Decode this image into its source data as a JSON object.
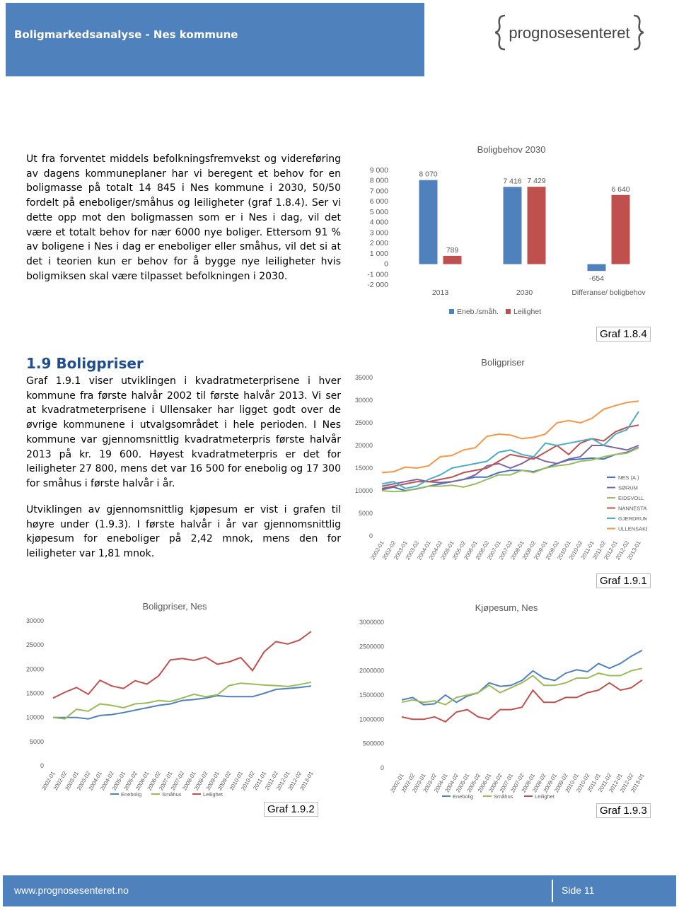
{
  "header": {
    "title": "Boligmarkedsanalyse - Nes kommune",
    "logo": "prognosesenteret"
  },
  "text": {
    "p1": "Ut fra forventet middels befolkningsfremvekst og videreføring av dagens kommuneplaner har vi beregent et behov for en boligmasse på totalt 14 845 i Nes kommune i 2030, 50/50 fordelt på eneboliger/småhus og leiligheter (graf 1.8.4). Ser vi dette opp mot den boligmassen som er i Nes i dag, vil det være et totalt behov for nær 6000 nye boliger. Ettersom 91 % av boligene i Nes i dag er eneboliger eller småhus, vil det si at det i teorien kun er behov for å bygge nye leiligheter hvis boligmiksen skal være tilpasset befolkningen i 2030.",
    "heading": "1.9 Boligpriser",
    "p2": "Graf 1.9.1 viser utviklingen i kvadratmeterprisene i hver kommune fra første halvår 2002 til første halvår 2013. Vi ser at kvadratmeterprisene i Ullensaker har ligget godt over de øvrige kommunene i utvalgsområdet i hele perioden. I Nes kommune var gjennomsnittlig kvadratmeterpris første halvår 2013 på kr. 19 600. Høyest kvadratmeterpris er det for leiligheter 27 800, mens det var 16 500 for enebolig og 17 300 for småhus i første halvår i år.",
    "p3": "Utviklingen av gjennomsnittlig kjøpesum er vist i grafen til høyre under (1.9.3). I første halvår i år var gjennomsnittlig kjøpesum for eneboliger på 2,42 mnok, mens den for leiligheter var 1,81 mnok."
  },
  "chart_data": [
    {
      "type": "bar",
      "title": "Boligbehov 2030",
      "caption": "Graf 1.8.4",
      "legend": "bottom",
      "grid": false,
      "categories": [
        "2013",
        "2030",
        "Differanse/ boligbehov"
      ],
      "series": [
        {
          "name": "Eneb./småh.",
          "color": "#4f81bd",
          "values": [
            8070,
            7416,
            -654
          ],
          "value_labels": [
            "8 070",
            "7 416",
            "-654"
          ]
        },
        {
          "name": "Leilighet",
          "color": "#c0504d",
          "values": [
            789,
            7429,
            6640
          ],
          "value_labels": [
            "789",
            "7 429",
            "6 640"
          ]
        }
      ],
      "ylim": [
        -2000,
        9000
      ],
      "yticks": [
        {
          "value": 9000,
          "label": "9 000"
        },
        {
          "value": 8000,
          "label": "8 000"
        },
        {
          "value": 7000,
          "label": "7 000"
        },
        {
          "value": 6000,
          "label": "6 000"
        },
        {
          "value": 5000,
          "label": "5 000"
        },
        {
          "value": 4000,
          "label": "4 000"
        },
        {
          "value": 3000,
          "label": "3 000"
        },
        {
          "value": 2000,
          "label": "2 000"
        },
        {
          "value": 1000,
          "label": "1 000"
        },
        0,
        {
          "value": -1000,
          "label": "-1 000"
        },
        {
          "value": -2000,
          "label": "-2 000"
        }
      ]
    },
    {
      "type": "line",
      "title": "Boligpriser",
      "caption": "Graf 1.9.1",
      "legend": "right",
      "grid": false,
      "categories": [
        "2002-01",
        "2002-02",
        "2003-01",
        "2003-02",
        "2004-01",
        "2004-02",
        "2005-01",
        "2005-02",
        "2006-01",
        "2006-02",
        "2007-01",
        "2007-02",
        "2008-01",
        "2008-02",
        "2009-01",
        "2009-02",
        "2010-01",
        "2010-02",
        "2011-01",
        "2011-02",
        "2012-01",
        "2012-02",
        "2013-01"
      ],
      "series": [
        {
          "name": "NES (A.)",
          "color": "#4472c4",
          "values": [
            10200,
            10800,
            10000,
            10400,
            11000,
            11500,
            12000,
            12500,
            13000,
            13000,
            14000,
            14500,
            14500,
            14200,
            15000,
            16000,
            16800,
            17000,
            17200,
            17000,
            18000,
            18500,
            19600
          ]
        },
        {
          "name": "SØRUM",
          "color": "#8064a2",
          "values": [
            11000,
            11500,
            12000,
            12500,
            12000,
            11800,
            12000,
            12500,
            13500,
            15500,
            16000,
            15000,
            16000,
            17500,
            16500,
            16000,
            17000,
            17500,
            20000,
            20000,
            19500,
            19000,
            20000
          ]
        },
        {
          "name": "EIDSVOLL",
          "color": "#9bbb59",
          "values": [
            10000,
            9800,
            9900,
            10500,
            11000,
            11000,
            11200,
            10800,
            11500,
            12500,
            13500,
            13500,
            14500,
            14000,
            15000,
            15500,
            15800,
            16500,
            16800,
            17500,
            18000,
            18300,
            19500
          ]
        },
        {
          "name": "NANNESTAD",
          "color": "#c0504d",
          "values": [
            10500,
            11000,
            11500,
            12000,
            12000,
            12500,
            13000,
            14000,
            14500,
            15000,
            16500,
            18000,
            17500,
            17000,
            18500,
            20000,
            18000,
            20500,
            21500,
            21000,
            23000,
            24000,
            24500
          ]
        },
        {
          "name": "GJERDRUM",
          "color": "#4bacc6",
          "values": [
            11500,
            12000,
            10500,
            11000,
            12500,
            13500,
            15000,
            15500,
            16000,
            16500,
            18500,
            19000,
            18000,
            17500,
            20500,
            20000,
            20500,
            21000,
            21500,
            20000,
            22500,
            23500,
            27500
          ]
        },
        {
          "name": "ULLENSAKER",
          "color": "#f79646",
          "values": [
            14000,
            14200,
            15200,
            15000,
            15500,
            17500,
            17800,
            19000,
            19500,
            22000,
            22500,
            22300,
            21500,
            21800,
            22500,
            25000,
            25500,
            25000,
            26000,
            28000,
            28800,
            29500,
            29800
          ]
        }
      ],
      "ylim": [
        0,
        35000
      ],
      "yticks": [
        35000,
        30000,
        25000,
        20000,
        15000,
        10000,
        5000,
        0
      ]
    },
    {
      "type": "line",
      "title": "Boligpriser, Nes",
      "caption": "Graf 1.9.2",
      "legend": "bottom",
      "grid": false,
      "categories": [
        "2002-01",
        "2002-02",
        "2003-01",
        "2003-02",
        "2004-01",
        "2004-02",
        "2005-01",
        "2005-02",
        "2006-01",
        "2006-02",
        "2007-01",
        "2007-02",
        "2008-01",
        "2008-02",
        "2009-01",
        "2009-02",
        "2010-01",
        "2010-02",
        "2011-01",
        "2011-02",
        "2012-01",
        "2012-02",
        "2013-01"
      ],
      "series": [
        {
          "name": "Enebolig",
          "color": "#4f81bd",
          "values": [
            10000,
            10000,
            10000,
            9700,
            10400,
            10600,
            11000,
            11500,
            12000,
            12500,
            12800,
            13500,
            13700,
            14000,
            14500,
            14300,
            14300,
            14300,
            15000,
            15800,
            16000,
            16200,
            16500
          ]
        },
        {
          "name": "Småhus",
          "color": "#9bbb59",
          "values": [
            10000,
            9700,
            11700,
            11300,
            12800,
            12500,
            12000,
            12800,
            13000,
            13500,
            13300,
            14000,
            14800,
            14300,
            14700,
            16600,
            17100,
            16900,
            16700,
            16600,
            16400,
            16800,
            17300
          ]
        },
        {
          "name": "Leilighet",
          "color": "#c0504d",
          "values": [
            14000,
            15200,
            16200,
            14800,
            17700,
            16500,
            16000,
            17600,
            16900,
            18600,
            21900,
            22200,
            21800,
            22500,
            21000,
            21500,
            22400,
            19700,
            23600,
            25700,
            25200,
            26000,
            27800
          ]
        }
      ],
      "ylim": [
        0,
        30000
      ],
      "yticks": [
        30000,
        25000,
        20000,
        15000,
        10000,
        5000,
        0
      ]
    },
    {
      "type": "line",
      "title": "Kjøpesum, Nes",
      "caption": "Graf 1.9.3",
      "legend": "bottom",
      "grid": false,
      "categories": [
        "2002-01",
        "2002-02",
        "2003-01",
        "2003-02",
        "2004-01",
        "2004-02",
        "2005-01",
        "2005-02",
        "2006-01",
        "2006-02",
        "2007-01",
        "2007-02",
        "2008-01",
        "2008-02",
        "2009-01",
        "2009-02",
        "2010-01",
        "2010-02",
        "2011-01",
        "2011-02",
        "2012-01",
        "2012-02",
        "2013-01"
      ],
      "series": [
        {
          "name": "Enebolig",
          "color": "#4f81bd",
          "values": [
            1400000,
            1450000,
            1300000,
            1320000,
            1500000,
            1350000,
            1480000,
            1550000,
            1750000,
            1680000,
            1700000,
            1800000,
            2000000,
            1850000,
            1800000,
            1950000,
            2020000,
            1980000,
            2150000,
            2050000,
            2150000,
            2300000,
            2420000
          ]
        },
        {
          "name": "Småhus",
          "color": "#9bbb59",
          "values": [
            1350000,
            1400000,
            1350000,
            1380000,
            1300000,
            1450000,
            1500000,
            1550000,
            1700000,
            1550000,
            1650000,
            1750000,
            1900000,
            1700000,
            1700000,
            1750000,
            1850000,
            1850000,
            1950000,
            1900000,
            1900000,
            2000000,
            2050000
          ]
        },
        {
          "name": "Leilighet",
          "color": "#c0504d",
          "values": [
            1050000,
            1000000,
            1000000,
            1050000,
            950000,
            1150000,
            1200000,
            1050000,
            1000000,
            1200000,
            1200000,
            1250000,
            1600000,
            1350000,
            1350000,
            1450000,
            1450000,
            1550000,
            1600000,
            1750000,
            1600000,
            1650000,
            1810000
          ]
        }
      ],
      "ylim": [
        0,
        3000000
      ],
      "yticks": [
        3000000,
        2500000,
        2000000,
        1500000,
        1000000,
        500000,
        0
      ]
    }
  ],
  "footer": {
    "url": "www.prognosesenteret.no",
    "page": "Side 11"
  }
}
